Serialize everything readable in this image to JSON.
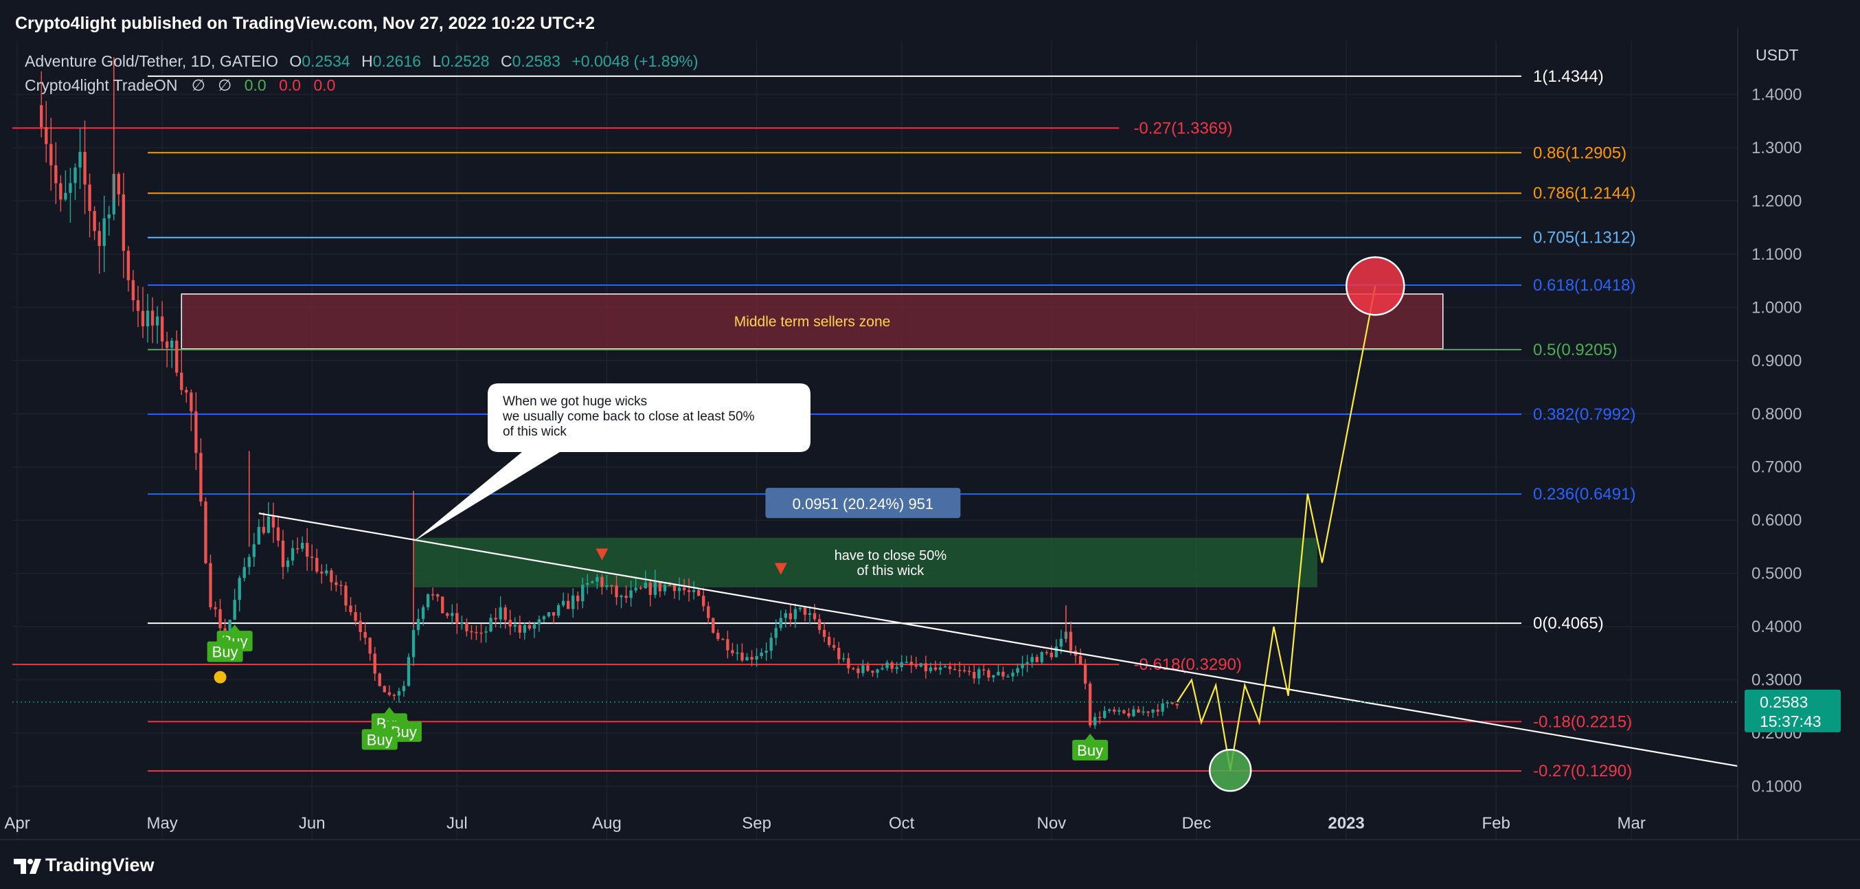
{
  "header": {
    "published": "Crypto4light published on TradingView.com, Nov 27, 2022 10:22 UTC+2"
  },
  "legend": {
    "symbol": "Adventure Gold/Tether, 1D, GATEIO",
    "o_label": "O",
    "o_val": "0.2534",
    "h_label": "H",
    "h_val": "0.2616",
    "l_label": "L",
    "l_val": "0.2528",
    "c_label": "C",
    "c_val": "0.2583",
    "change": "+0.0048 (+1.89%)",
    "indicator": "Crypto4light TradeON",
    "ind_sym1": "∅",
    "ind_sym2": "∅",
    "ind_v1": "0.0",
    "ind_v2": "0.0",
    "ind_v3": "0.0"
  },
  "footer": {
    "brand": "TradingView"
  },
  "colors": {
    "background": "#131722",
    "up": "#26a69a",
    "down": "#ef5350",
    "text": "#d1d4dc",
    "grid": "#1e222d",
    "fib_white": "#ffffff",
    "fib_red": "#f23645",
    "fib_orange": "#ff9800",
    "fib_lightblue": "#64b5f6",
    "fib_blue": "#2962ff",
    "fib_green": "#4caf50",
    "projection": "#ffeb3b",
    "sellers_zone": "#6b2533",
    "target_zone": "#1e5630",
    "price_label": "#089981",
    "buy_label": "#3fae1e"
  },
  "chart_data": {
    "type": "candlestick",
    "title": "Adventure Gold/Tether, 1D, GATEIO",
    "y_axis": {
      "unit": "USDT",
      "ticks": [
        "1.4000",
        "1.3000",
        "1.2000",
        "1.1000",
        "1.0000",
        "0.9000",
        "0.8000",
        "0.7000",
        "0.6000",
        "0.5000",
        "0.4000",
        "0.3000",
        "0.2000",
        "0.1000"
      ],
      "range": [
        0.0,
        1.5
      ]
    },
    "x_axis": {
      "range": [
        "2022-03-31",
        "2023-03-23"
      ],
      "ticks": [
        {
          "date": "2022-04-01",
          "label": "Apr"
        },
        {
          "date": "2022-05-01",
          "label": "May"
        },
        {
          "date": "2022-06-01",
          "label": "Jun"
        },
        {
          "date": "2022-07-01",
          "label": "Jul"
        },
        {
          "date": "2022-08-01",
          "label": "Aug"
        },
        {
          "date": "2022-09-01",
          "label": "Sep"
        },
        {
          "date": "2022-10-01",
          "label": "Oct"
        },
        {
          "date": "2022-11-01",
          "label": "Nov"
        },
        {
          "date": "2022-12-01",
          "label": "Dec"
        },
        {
          "date": "2023-01-01",
          "label": "2023",
          "bold": true
        },
        {
          "date": "2023-02-01",
          "label": "Feb"
        },
        {
          "date": "2023-03-01",
          "label": "Mar"
        }
      ]
    },
    "grid": true,
    "current_price": {
      "value": 0.2583,
      "label": "0.2583",
      "countdown": "15:37:43"
    },
    "price_path": [
      [
        "2022-04-06",
        1.38
      ],
      [
        "2022-04-10",
        1.18
      ],
      [
        "2022-04-14",
        1.26
      ],
      [
        "2022-04-18",
        1.12
      ],
      [
        "2022-04-21",
        1.25
      ],
      [
        "2022-04-24",
        1.05
      ],
      [
        "2022-04-27",
        0.98
      ],
      [
        "2022-05-01",
        0.95
      ],
      [
        "2022-05-04",
        0.9
      ],
      [
        "2022-05-07",
        0.8
      ],
      [
        "2022-05-09",
        0.62
      ],
      [
        "2022-05-11",
        0.45
      ],
      [
        "2022-05-14",
        0.38
      ],
      [
        "2022-05-17",
        0.48
      ],
      [
        "2022-05-20",
        0.57
      ],
      [
        "2022-05-23",
        0.6
      ],
      [
        "2022-05-26",
        0.52
      ],
      [
        "2022-05-30",
        0.55
      ],
      [
        "2022-06-03",
        0.5
      ],
      [
        "2022-06-07",
        0.47
      ],
      [
        "2022-06-11",
        0.4
      ],
      [
        "2022-06-14",
        0.31
      ],
      [
        "2022-06-17",
        0.27
      ],
      [
        "2022-06-20",
        0.29
      ],
      [
        "2022-06-22",
        0.4
      ],
      [
        "2022-06-25",
        0.47
      ],
      [
        "2022-06-28",
        0.43
      ],
      [
        "2022-07-02",
        0.4
      ],
      [
        "2022-07-06",
        0.38
      ],
      [
        "2022-07-10",
        0.43
      ],
      [
        "2022-07-14",
        0.39
      ],
      [
        "2022-07-19",
        0.41
      ],
      [
        "2022-07-25",
        0.45
      ],
      [
        "2022-07-30",
        0.49
      ],
      [
        "2022-08-04",
        0.45
      ],
      [
        "2022-08-09",
        0.47
      ],
      [
        "2022-08-15",
        0.48
      ],
      [
        "2022-08-20",
        0.45
      ],
      [
        "2022-08-24",
        0.38
      ],
      [
        "2022-08-30",
        0.34
      ],
      [
        "2022-09-03",
        0.36
      ],
      [
        "2022-09-07",
        0.42
      ],
      [
        "2022-09-11",
        0.43
      ],
      [
        "2022-09-15",
        0.38
      ],
      [
        "2022-09-20",
        0.32
      ],
      [
        "2022-09-25",
        0.32
      ],
      [
        "2022-09-30",
        0.33
      ],
      [
        "2022-10-06",
        0.32
      ],
      [
        "2022-10-12",
        0.315
      ],
      [
        "2022-10-18",
        0.31
      ],
      [
        "2022-10-23",
        0.31
      ],
      [
        "2022-10-28",
        0.34
      ],
      [
        "2022-11-01",
        0.35
      ],
      [
        "2022-11-04",
        0.38
      ],
      [
        "2022-11-06",
        0.35
      ],
      [
        "2022-11-08",
        0.3
      ],
      [
        "2022-11-09",
        0.22
      ],
      [
        "2022-11-12",
        0.24
      ],
      [
        "2022-11-16",
        0.235
      ],
      [
        "2022-11-20",
        0.24
      ],
      [
        "2022-11-24",
        0.25
      ],
      [
        "2022-11-27",
        0.2583
      ]
    ],
    "projection_path": [
      [
        "2022-11-27",
        0.2583
      ],
      [
        "2022-11-30",
        0.3
      ],
      [
        "2022-12-02",
        0.22
      ],
      [
        "2022-12-05",
        0.29
      ],
      [
        "2022-12-08",
        0.13
      ],
      [
        "2022-12-11",
        0.29
      ],
      [
        "2022-12-14",
        0.22
      ],
      [
        "2022-12-17",
        0.4
      ],
      [
        "2022-12-20",
        0.27
      ],
      [
        "2022-12-24",
        0.65
      ],
      [
        "2022-12-27",
        0.52
      ],
      [
        "2023-01-07",
        1.04
      ]
    ],
    "fib_levels": [
      {
        "ratio": "1",
        "value": 1.4344,
        "label": "1(1.4344)",
        "color": "#ffffff",
        "from": "2022-04-28"
      },
      {
        "ratio": "-0.27",
        "value": 1.3369,
        "label": "-0.27(1.3369)",
        "color": "#f23645",
        "from": "2022-03-31",
        "to": "2022-11-15",
        "label_at": "2022-11-18"
      },
      {
        "ratio": "0.86",
        "value": 1.2905,
        "label": "0.86(1.2905)",
        "color": "#ff9800",
        "from": "2022-04-28"
      },
      {
        "ratio": "0.786",
        "value": 1.2144,
        "label": "0.786(1.2144)",
        "color": "#ff9800",
        "from": "2022-04-28"
      },
      {
        "ratio": "0.705",
        "value": 1.1312,
        "label": "0.705(1.1312)",
        "color": "#64b5f6",
        "from": "2022-04-28"
      },
      {
        "ratio": "0.618",
        "value": 1.0418,
        "label": "0.618(1.0418)",
        "color": "#2962ff",
        "from": "2022-04-28"
      },
      {
        "ratio": "0.5",
        "value": 0.9205,
        "label": "0.5(0.9205)",
        "color": "#4caf50",
        "from": "2022-04-28"
      },
      {
        "ratio": "0.382",
        "value": 0.7992,
        "label": "0.382(0.7992)",
        "color": "#2962ff",
        "from": "2022-04-28"
      },
      {
        "ratio": "0.236",
        "value": 0.6491,
        "label": "0.236(0.6491)",
        "color": "#2962ff",
        "from": "2022-04-28"
      },
      {
        "ratio": "0",
        "value": 0.4065,
        "label": "0(0.4065)",
        "color": "#ffffff",
        "from": "2022-04-28"
      },
      {
        "ratio": "-0.618",
        "value": 0.329,
        "label": "-0.618(0.3290)",
        "color": "#f23645",
        "from": "2022-03-31",
        "to": "2022-11-15",
        "label_at": "2022-11-18"
      },
      {
        "ratio": "-0.18",
        "value": 0.2215,
        "label": "-0.18(0.2215)",
        "color": "#f23645",
        "from": "2022-04-28"
      },
      {
        "ratio": "-0.27",
        "value": 0.129,
        "label": "-0.27(0.1290)",
        "color": "#f23645",
        "from": "2022-04-28"
      }
    ],
    "trendline": {
      "from": [
        "2022-05-21",
        0.613
      ],
      "to": [
        "2023-03-23",
        0.138
      ]
    },
    "sellers_zone": {
      "label": "Middle term sellers zone",
      "from": "2022-05-05",
      "to": "2023-01-21",
      "top": 1.025,
      "bottom": 0.922
    },
    "target_zone": {
      "label_line1": "have to close 50%",
      "label_line2": "of this wick",
      "from": "2022-06-22",
      "to": "2022-12-26",
      "top": 0.567,
      "bottom": 0.474
    },
    "measure_label": {
      "text": "0.0951 (20.24%) 951",
      "date": "2022-09-23",
      "value": 0.631
    },
    "callout": {
      "lines": [
        "When we got huge wicks",
        "we usually come back to close at least 50%",
        "of this wick"
      ],
      "anchor": [
        "2022-06-22",
        0.56
      ]
    },
    "circles": [
      {
        "name": "target-red",
        "date": "2023-01-07",
        "value": 1.04,
        "color": "#f23645"
      },
      {
        "name": "low-green",
        "date": "2022-12-08",
        "value": 0.13,
        "color": "#4caf50"
      }
    ],
    "down_markers": [
      [
        "2022-07-31",
        0.535
      ],
      [
        "2022-09-06",
        0.508
      ]
    ],
    "signals": [
      {
        "label": "Buy",
        "date": "2022-05-16",
        "value": 0.36
      },
      {
        "label": "Buy",
        "date": "2022-05-14",
        "value": 0.34
      },
      {
        "label": "Buy",
        "date": "2022-06-17",
        "value": 0.205
      },
      {
        "label": "Buy",
        "date": "2022-06-20",
        "value": 0.19
      },
      {
        "label": "Buy",
        "date": "2022-06-15",
        "value": 0.175
      },
      {
        "label": "Buy",
        "date": "2022-11-09",
        "value": 0.155
      }
    ]
  }
}
